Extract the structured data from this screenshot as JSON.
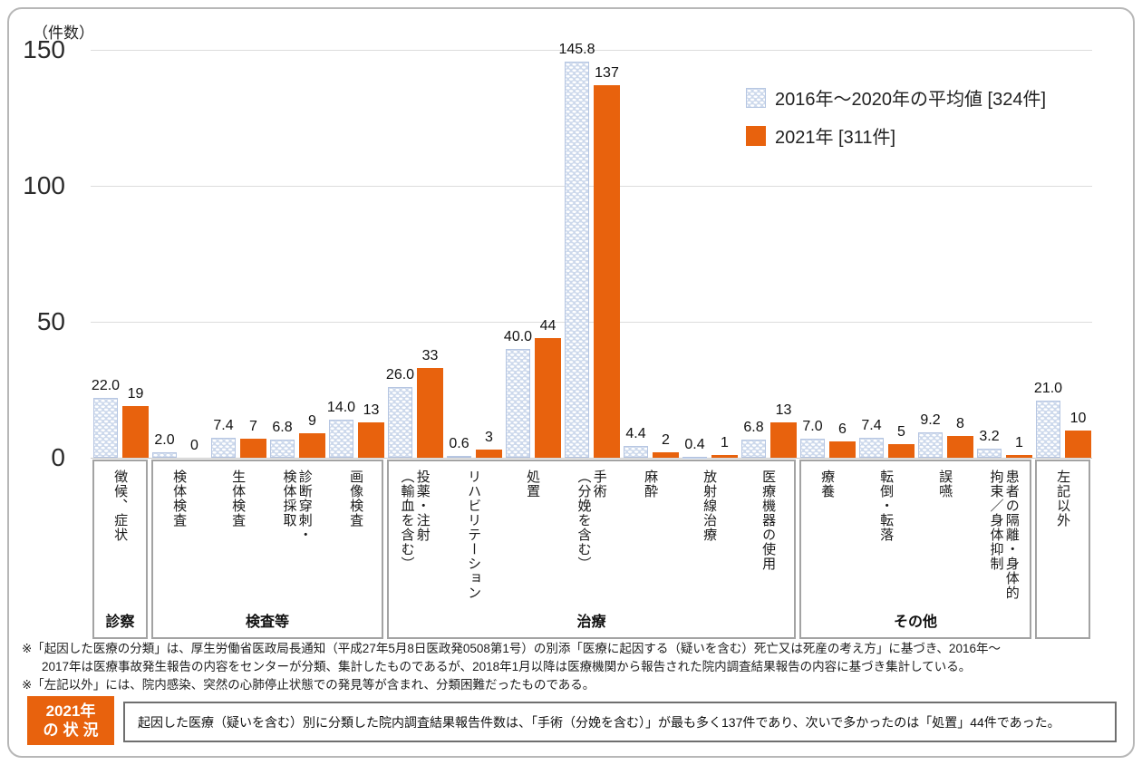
{
  "unit_label": "（件数）",
  "legend": {
    "average": "2016年～2020年の平均値 [324件]",
    "y2021": "2021年 [311件]"
  },
  "colors": {
    "average_fill": "#cdd9ec",
    "average_border": "#b6c6e2",
    "y2021_fill": "#e8620d",
    "gridline": "#dcdcdc",
    "box_border": "#a3a3a3"
  },
  "chart_data": {
    "type": "bar",
    "title": "",
    "xlabel": "",
    "ylabel": "（件数）",
    "ylim": [
      0,
      150
    ],
    "yticks": [
      0,
      50,
      100,
      150
    ],
    "grid": true,
    "legend_position": "top-right",
    "categories": [
      "徴候、症状",
      "検体検査",
      "生体検査",
      "診断穿刺・\n検体採取",
      "画像検査",
      "投薬・注射\n（輸血を含む）",
      "リハビリテーション",
      "処置",
      "手術\n（分娩を含む）",
      "麻酔",
      "放射線治療",
      "医療機器の使用",
      "療養",
      "転倒・転落",
      "誤嚥",
      "患者の隔離・身体的\n拘束／身体抑制",
      "左記以外"
    ],
    "series": [
      {
        "name": "2016年～2020年の平均値 [324件]",
        "total_label": "324件",
        "values": [
          22.0,
          2.0,
          7.4,
          6.8,
          14.0,
          26.0,
          0.6,
          40.0,
          145.8,
          4.4,
          0.4,
          6.8,
          7.0,
          7.4,
          9.2,
          3.2,
          21.0
        ]
      },
      {
        "name": "2021年 [311件]",
        "total_label": "311件",
        "values": [
          19,
          0,
          7,
          9,
          13,
          33,
          3,
          44,
          137,
          2,
          1,
          13,
          6,
          5,
          8,
          1,
          10
        ]
      }
    ],
    "groups": [
      {
        "label": "診察",
        "start": 0,
        "end": 0
      },
      {
        "label": "検査等",
        "start": 1,
        "end": 4
      },
      {
        "label": "治療",
        "start": 5,
        "end": 11
      },
      {
        "label": "その他",
        "start": 12,
        "end": 15
      },
      {
        "label": "",
        "start": 16,
        "end": 16
      }
    ]
  },
  "footnotes": [
    "※「起因した医療の分類」は、厚生労働省医政局長通知（平成27年5月8日医政発0508第1号）の別添「医療に起因する（疑いを含む）死亡又は死産の考え方」に基づき、2016年～",
    "2017年は医療事故発生報告の内容をセンターが分類、集計したものであるが、2018年1月以降は医療機関から報告された院内調査結果報告の内容に基づき集計している。",
    "※「左記以外」には、院内感染、突然の心肺停止状態での発見等が含まれ、分類困難だったものである。"
  ],
  "status": {
    "badge_line1": "2021年",
    "badge_line2": "の状況",
    "text": "起因した医療（疑いを含む）別に分類した院内調査結果報告件数は、「手術（分娩を含む）」が最も多く137件であり、次いで多かったのは「処置」44件であった。"
  }
}
